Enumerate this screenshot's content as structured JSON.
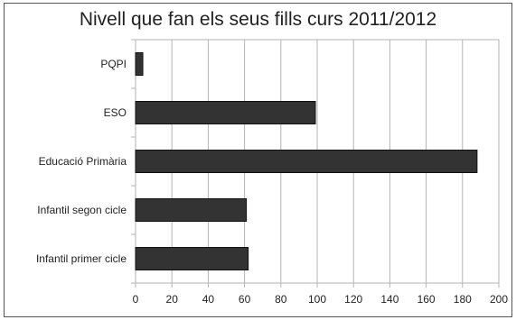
{
  "chart_data": {
    "type": "bar",
    "orientation": "horizontal",
    "title": "Nivell que fan els seus fills curs 2011/2012",
    "categories": [
      "PQPI",
      "ESO",
      "Educació Primària",
      "Infantil segon cicle",
      "Infantil primer cicle"
    ],
    "values": [
      4,
      99,
      188,
      61,
      62
    ],
    "xlim": [
      0,
      200
    ],
    "xticks": [
      0,
      20,
      40,
      60,
      80,
      100,
      120,
      140,
      160,
      180,
      200
    ],
    "grid": true,
    "legend": "none",
    "bar_color": "#333333"
  }
}
